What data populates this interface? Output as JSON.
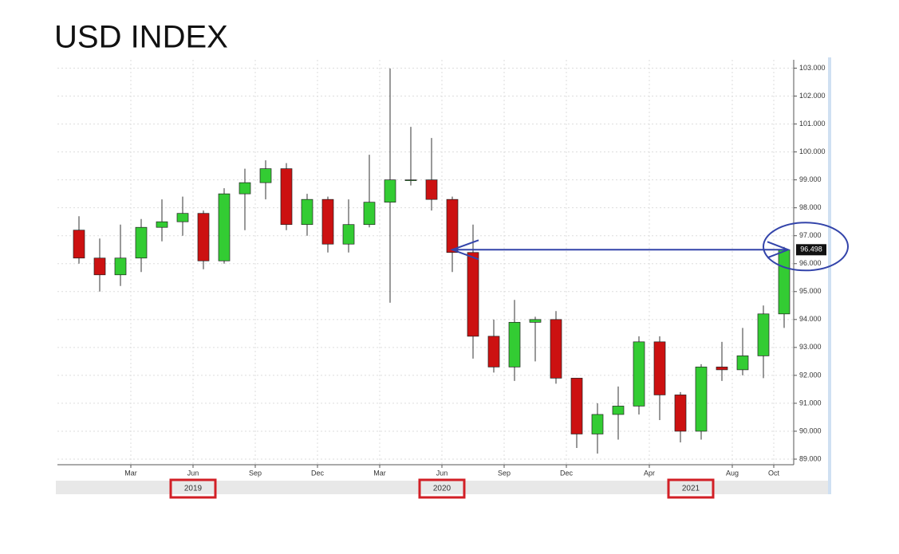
{
  "chart_data": {
    "type": "candlestick",
    "title": "USD INDEX",
    "x": [
      "2018-12",
      "2019-01",
      "2019-02",
      "2019-03",
      "2019-04",
      "2019-05",
      "2019-06",
      "2019-07",
      "2019-08",
      "2019-09",
      "2019-10",
      "2019-11",
      "2019-12",
      "2020-01",
      "2020-02",
      "2020-03",
      "2020-04",
      "2020-05",
      "2020-06",
      "2020-07",
      "2020-08",
      "2020-09",
      "2020-10",
      "2020-11",
      "2020-12",
      "2021-01",
      "2021-02",
      "2021-03",
      "2021-04",
      "2021-05",
      "2021-06",
      "2021-07",
      "2021-08",
      "2021-09",
      "2021-10"
    ],
    "open": [
      97.2,
      96.2,
      95.6,
      96.2,
      97.3,
      97.5,
      97.8,
      96.1,
      98.5,
      98.9,
      99.4,
      97.4,
      98.3,
      96.7,
      97.4,
      98.2,
      99.0,
      99.0,
      98.3,
      96.4,
      93.4,
      92.3,
      93.9,
      94.0,
      91.9,
      89.9,
      90.6,
      90.9,
      93.2,
      91.3,
      90.0,
      92.3,
      92.2,
      92.7,
      94.2
    ],
    "high": [
      97.7,
      96.9,
      97.4,
      97.6,
      98.3,
      98.4,
      97.9,
      98.7,
      99.4,
      99.7,
      99.6,
      98.5,
      98.4,
      98.3,
      99.9,
      102.99,
      100.9,
      100.5,
      98.4,
      97.4,
      94.0,
      94.7,
      94.1,
      94.3,
      91.9,
      91.0,
      91.6,
      93.4,
      93.4,
      91.4,
      92.4,
      93.2,
      93.7,
      94.5,
      96.6
    ],
    "low": [
      96.0,
      95.0,
      95.2,
      95.7,
      96.8,
      97.0,
      95.8,
      96.0,
      97.2,
      98.3,
      97.2,
      97.0,
      96.4,
      96.4,
      97.3,
      94.6,
      98.8,
      97.9,
      95.7,
      92.6,
      92.1,
      91.8,
      92.5,
      91.7,
      89.4,
      89.2,
      89.7,
      90.6,
      90.4,
      89.6,
      89.7,
      91.8,
      92.0,
      91.9,
      93.7
    ],
    "close": [
      96.2,
      95.6,
      96.2,
      97.3,
      97.5,
      97.8,
      96.1,
      98.5,
      98.9,
      99.4,
      97.4,
      98.3,
      96.7,
      97.4,
      98.2,
      99.0,
      99.0,
      98.3,
      96.4,
      93.4,
      92.3,
      93.9,
      94.0,
      91.9,
      89.9,
      90.6,
      90.9,
      93.2,
      91.3,
      90.0,
      92.3,
      92.2,
      92.7,
      94.2,
      96.498
    ],
    "up_color": "#33cc33",
    "down_color": "#cc1111",
    "ylim": [
      88.8,
      103.3
    ],
    "yticks": [
      {
        "value": 89,
        "label": "89.000"
      },
      {
        "value": 90,
        "label": "90.000"
      },
      {
        "value": 91,
        "label": "91.000"
      },
      {
        "value": 92,
        "label": "92.000"
      },
      {
        "value": 93,
        "label": "93.000"
      },
      {
        "value": 94,
        "label": "94.000"
      },
      {
        "value": 95,
        "label": "95.000"
      },
      {
        "value": 96,
        "label": "96.000"
      },
      {
        "value": 97,
        "label": "97.000"
      },
      {
        "value": 98,
        "label": "98.000"
      },
      {
        "value": 99,
        "label": "99.000"
      },
      {
        "value": 100,
        "label": "100.000"
      },
      {
        "value": 101,
        "label": "101.000"
      },
      {
        "value": 102,
        "label": "102.000"
      },
      {
        "value": 103,
        "label": "103.000"
      }
    ],
    "xticks": [
      {
        "value": "2019-03",
        "label": "Mar"
      },
      {
        "value": "2019-06",
        "label": "Jun"
      },
      {
        "value": "2019-09",
        "label": "Sep"
      },
      {
        "value": "2019-12",
        "label": "Dec"
      },
      {
        "value": "2020-03",
        "label": "Mar"
      },
      {
        "value": "2020-06",
        "label": "Jun"
      },
      {
        "value": "2020-09",
        "label": "Sep"
      },
      {
        "value": "2020-12",
        "label": "Dec"
      },
      {
        "value": "2021-04",
        "label": "Apr"
      },
      {
        "value": "2021-08",
        "label": "Aug"
      },
      {
        "value": "2021-10",
        "label": "Oct"
      }
    ],
    "years": [
      "2019",
      "2020",
      "2021"
    ],
    "grid": true
  }
}
